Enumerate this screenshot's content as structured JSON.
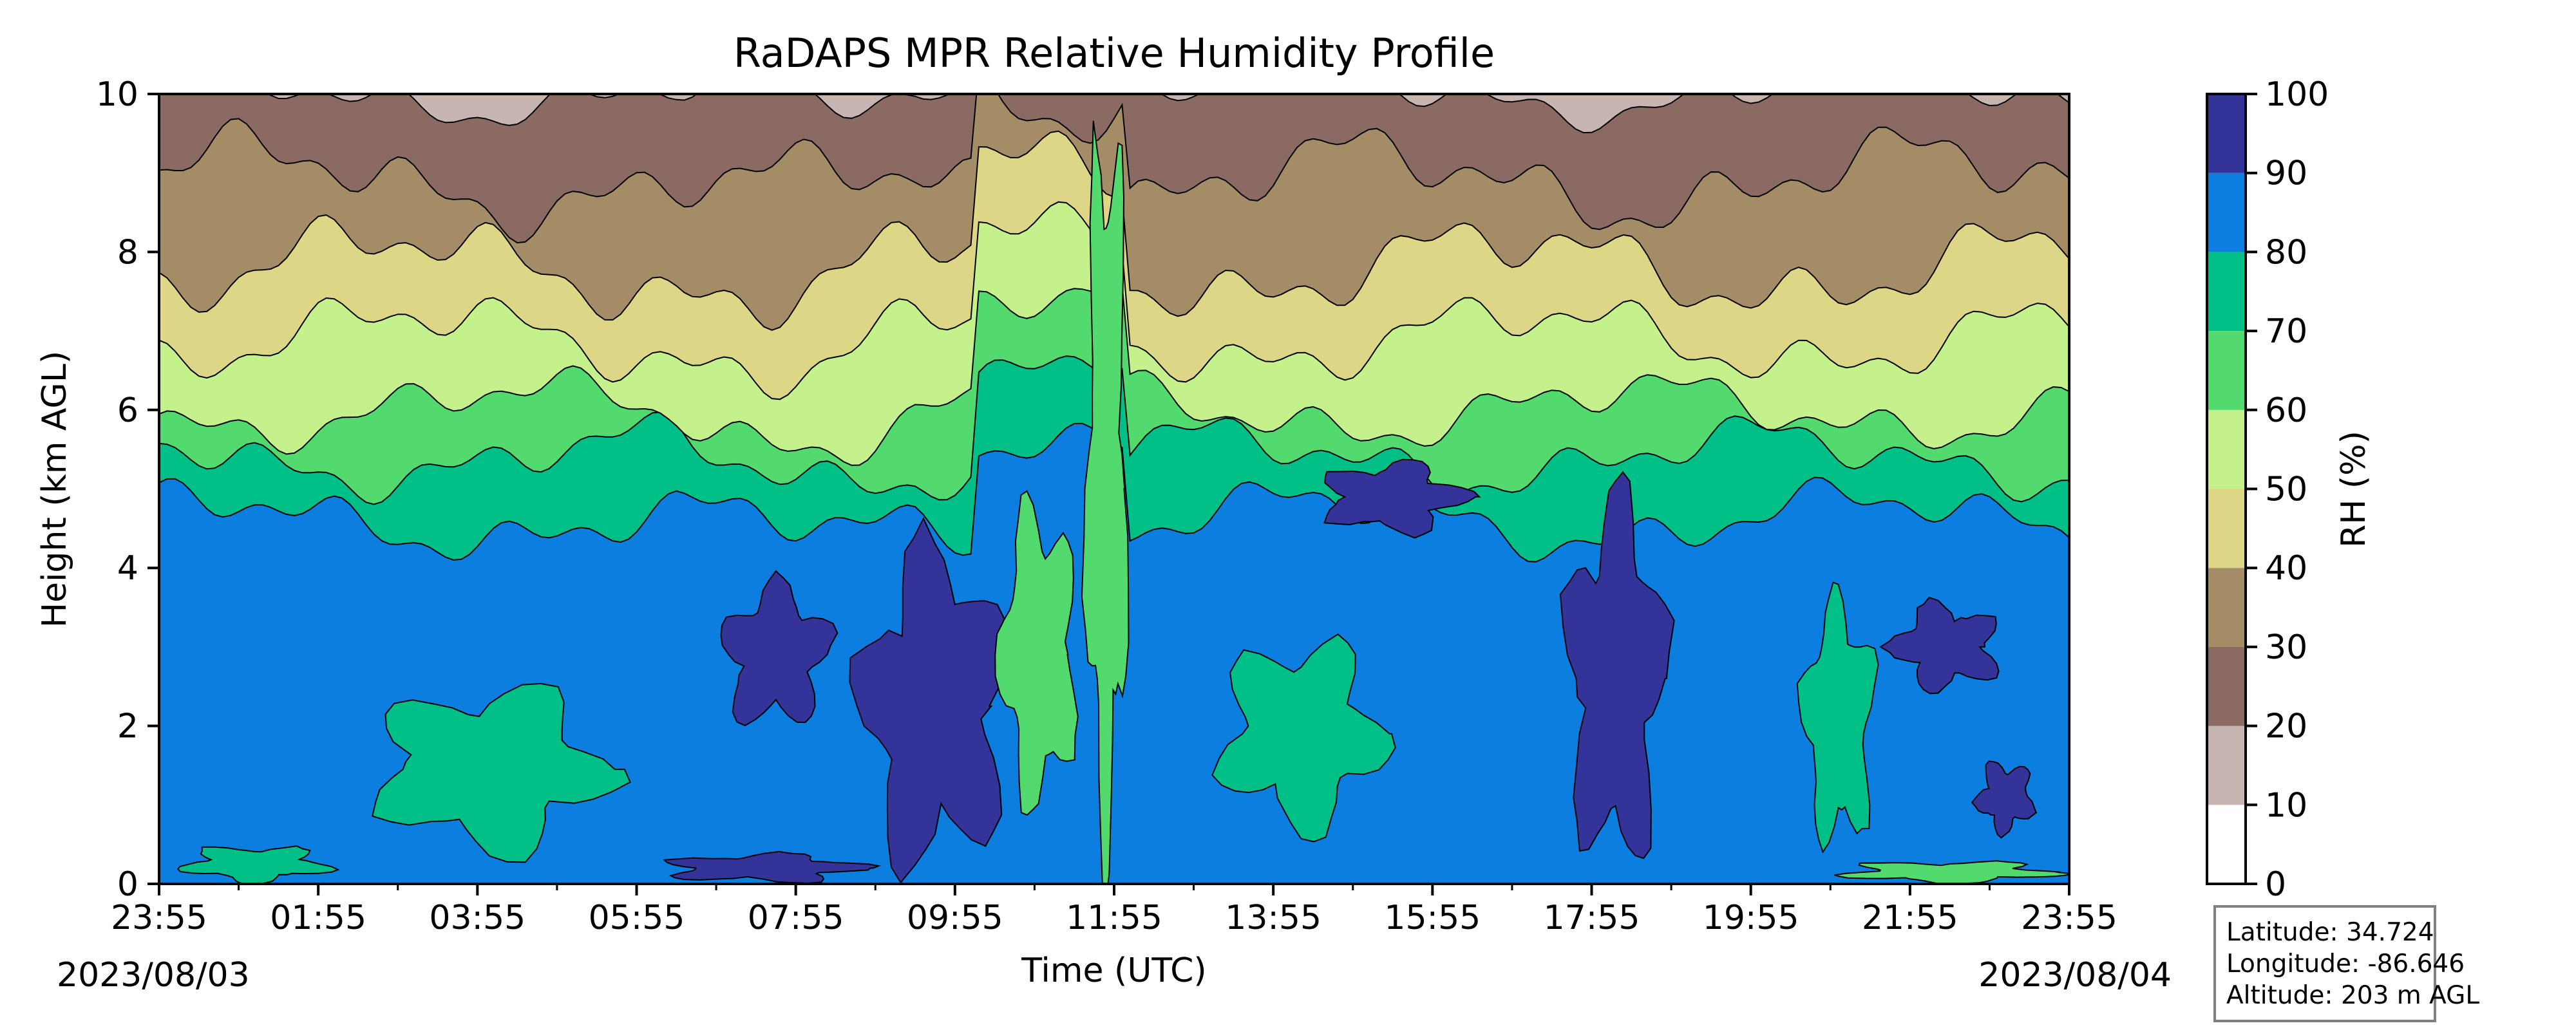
{
  "chart_data": {
    "type": "contourf",
    "title": "RaDAPS MPR Relative Humidity Profile",
    "xlabel": "Time (UTC)",
    "ylabel": "Height (km AGL)",
    "xticks": [
      "23:55",
      "01:55",
      "03:55",
      "05:55",
      "07:55",
      "09:55",
      "11:55",
      "13:55",
      "15:55",
      "17:55",
      "19:55",
      "21:55",
      "23:55"
    ],
    "xlim_hours": [
      0,
      24
    ],
    "date_start": "2023/08/03",
    "date_end": "2023/08/04",
    "yticks": [
      0,
      2,
      4,
      6,
      8,
      10
    ],
    "ylim": [
      0,
      10
    ],
    "colorbar": {
      "label": "RH (%)",
      "levels": [
        0,
        10,
        20,
        30,
        40,
        50,
        60,
        70,
        80,
        90,
        100
      ],
      "colors": [
        "#ffffff",
        "#c6b5b0",
        "#8a6a62",
        "#a48c66",
        "#ddd686",
        "#c5f18c",
        "#52da6e",
        "#00c087",
        "#0c7ee0",
        "#333399"
      ]
    },
    "grid": false,
    "levels_by_height": [
      {
        "height_km": 0.25,
        "rh_percent": 85
      },
      {
        "height_km": 1.0,
        "rh_percent": 78
      },
      {
        "height_km": 2.0,
        "rh_percent": 82
      },
      {
        "height_km": 3.0,
        "rh_percent": 84
      },
      {
        "height_km": 4.0,
        "rh_percent": 82
      },
      {
        "height_km": 5.0,
        "rh_percent": 76
      },
      {
        "height_km": 5.7,
        "rh_percent": 65
      },
      {
        "height_km": 6.2,
        "rh_percent": 55
      },
      {
        "height_km": 7.0,
        "rh_percent": 45
      },
      {
        "height_km": 8.0,
        "rh_percent": 35
      },
      {
        "height_km": 9.5,
        "rh_percent": 25
      }
    ]
  },
  "info": {
    "latitude": "Latitude: 34.724",
    "longitude": "Longitude: -86.646",
    "altitude": "Altitude: 203 m AGL"
  }
}
